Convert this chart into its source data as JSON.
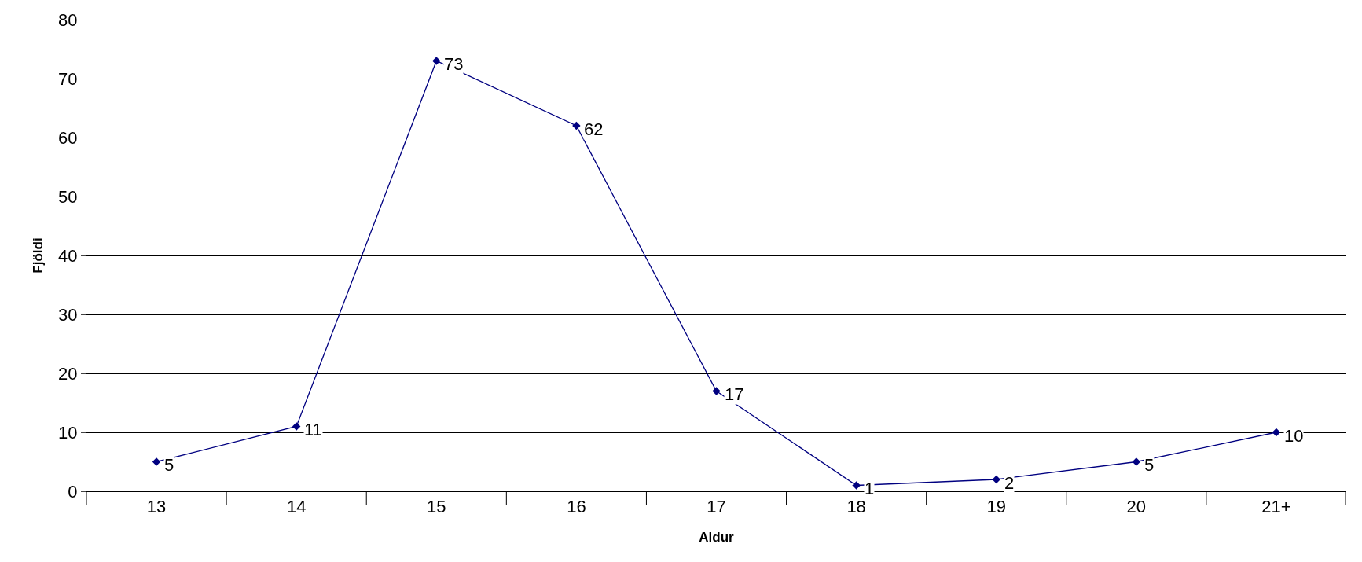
{
  "chart_data": {
    "type": "line",
    "xlabel": "Aldur",
    "ylabel": "Fjöldi",
    "categories": [
      "13",
      "14",
      "15",
      "16",
      "17",
      "18",
      "19",
      "20",
      "21+"
    ],
    "series": [
      {
        "color": "#000080",
        "values": [
          5,
          11,
          73,
          62,
          17,
          1,
          2,
          5,
          10
        ]
      }
    ],
    "ylim": [
      0,
      80
    ],
    "yticks": [
      0,
      10,
      20,
      30,
      40,
      50,
      60,
      70,
      80
    ],
    "grid": "y",
    "marker": "diamond",
    "line_style": "solid",
    "data_labels": true
  }
}
